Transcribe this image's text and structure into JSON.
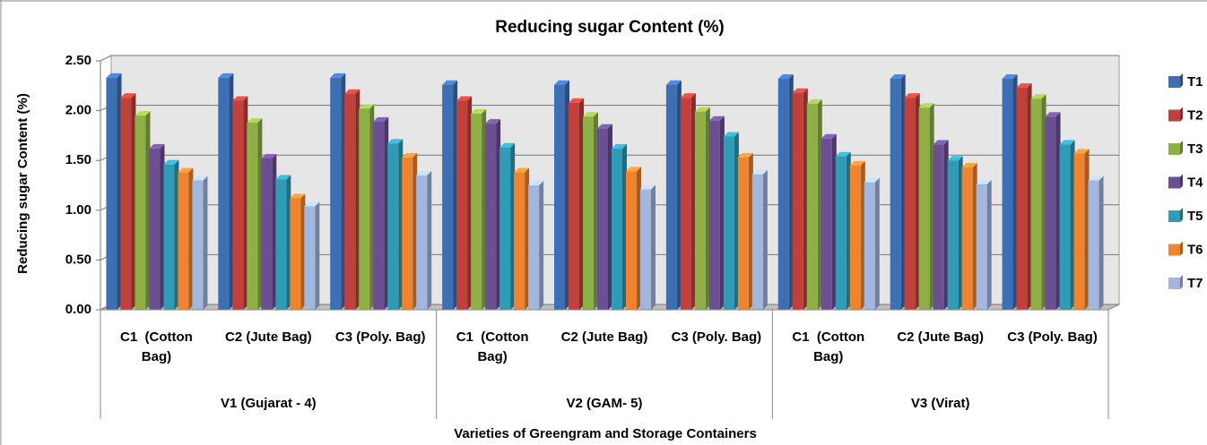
{
  "chart_data": {
    "type": "bar3d",
    "title": "Reducing sugar Content (%)",
    "y_label": "Reducing sugar Content (%)",
    "x_label": "Varieties of Greengram and Storage Containers",
    "categories": [
      "C1  (Cotton Bag)",
      "C2 (Jute Bag)",
      "C3 (Poly. Bag)",
      "C1  (Cotton Bag)",
      "C2 (Jute Bag)",
      "C3 (Poly. Bag)",
      "C1  (Cotton Bag)",
      "C2 (Jute Bag)",
      "C3 (Poly. Bag)"
    ],
    "category_groups": [
      "V1 (Gujarat - 4)",
      "V2 (GAM- 5)",
      "V3 (Virat)"
    ],
    "series": [
      {
        "name": "T1",
        "color": "#3d6fb4",
        "values": [
          2.33,
          2.33,
          2.33,
          2.26,
          2.26,
          2.26,
          2.32,
          2.32,
          2.32
        ]
      },
      {
        "name": "T2",
        "color": "#c0413c",
        "values": [
          2.13,
          2.1,
          2.17,
          2.1,
          2.08,
          2.13,
          2.18,
          2.13,
          2.23
        ]
      },
      {
        "name": "T3",
        "color": "#8fb046",
        "values": [
          1.95,
          1.88,
          2.02,
          1.97,
          1.94,
          1.99,
          2.07,
          2.03,
          2.12
        ]
      },
      {
        "name": "T4",
        "color": "#6b4f93",
        "values": [
          1.62,
          1.52,
          1.89,
          1.87,
          1.82,
          1.9,
          1.72,
          1.66,
          1.94
        ]
      },
      {
        "name": "T5",
        "color": "#2f9bb5",
        "values": [
          1.46,
          1.31,
          1.67,
          1.63,
          1.62,
          1.74,
          1.54,
          1.5,
          1.66
        ]
      },
      {
        "name": "T6",
        "color": "#ee8430",
        "values": [
          1.38,
          1.12,
          1.53,
          1.38,
          1.39,
          1.53,
          1.45,
          1.43,
          1.57
        ]
      },
      {
        "name": "T7",
        "color": "#a3b7de",
        "values": [
          1.3,
          1.04,
          1.35,
          1.25,
          1.21,
          1.36,
          1.28,
          1.26,
          1.3
        ]
      }
    ],
    "ylim": [
      0,
      2.5
    ],
    "yticks": [
      {
        "value": 0,
        "label": "0.00"
      },
      {
        "value": 0.5,
        "label": "0.50"
      },
      {
        "value": 1,
        "label": "1.00"
      },
      {
        "value": 1.5,
        "label": "1.50"
      },
      {
        "value": 2,
        "label": "2.00"
      },
      {
        "value": 2.5,
        "label": "2.50"
      }
    ],
    "grid": true,
    "legend": "right"
  }
}
